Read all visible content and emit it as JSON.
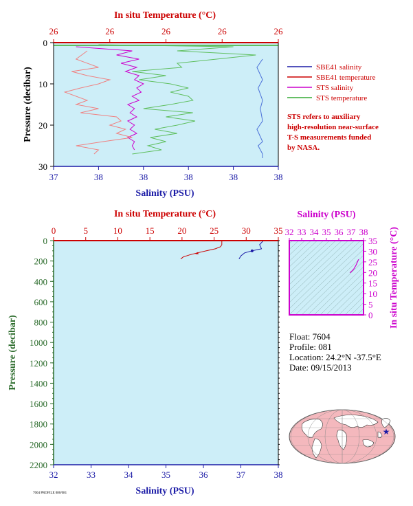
{
  "chart_data": [
    {
      "type": "line",
      "panel": "upper-profile",
      "top_axis": {
        "label": "In situ Temperature (°C)",
        "ticks": [
          "26",
          "26",
          "26",
          "26",
          "26"
        ]
      },
      "bottom_axis": {
        "label": "Salinity (PSU)",
        "ticks": [
          "37",
          "38",
          "38",
          "38",
          "38",
          "38"
        ]
      },
      "left_axis": {
        "label": "Pressure (decibar)",
        "ticks": [
          "0",
          "10",
          "20",
          "30"
        ],
        "ylim": [
          0,
          30
        ]
      },
      "legend": {
        "placement": "right",
        "items": [
          {
            "name": "SBE41 salinity",
            "color": "#1a1aa6"
          },
          {
            "name": "SBE41 temperature",
            "color": "#cc0000"
          },
          {
            "name": "STS salinity",
            "color": "#cc00cc"
          },
          {
            "name": "STS temperature",
            "color": "#33aa33"
          }
        ]
      },
      "note": [
        "STS refers to auxiliary",
        "high-resolution near-surface",
        "T-S measurements funded",
        "by NASA."
      ],
      "series": [
        {
          "name": "SBE41 salinity",
          "color": "#4a6fd8",
          "x_frac": [
            0.93,
            0.905,
            0.93,
            0.91,
            0.93,
            0.92,
            0.93,
            0.905,
            0.93,
            0.91,
            0.93,
            0.93
          ],
          "pressure": [
            4,
            6,
            9,
            11,
            14,
            16,
            19,
            21,
            24,
            25,
            27,
            28
          ]
        },
        {
          "name": "STS temperature",
          "color": "#5fbf5f",
          "x_frac": [
            0.2,
            0.8,
            0.55,
            0.9,
            0.55,
            0.57,
            0.35,
            0.5,
            0.38,
            0.52,
            0.6,
            0.52,
            0.6,
            0.62,
            0.52,
            0.4,
            0.62,
            0.5,
            0.63,
            0.55,
            0.45,
            0.55,
            0.43,
            0.5,
            0.42,
            0.48,
            0.35
          ],
          "pressure": [
            0.5,
            1,
            2,
            3,
            5,
            6,
            7,
            8,
            9,
            10,
            11,
            12,
            13,
            14,
            15,
            16,
            17,
            18,
            19,
            20,
            21,
            22,
            23,
            24,
            25,
            26,
            27
          ]
        },
        {
          "name": "STS salinity",
          "color": "#cc00cc",
          "x_frac": [
            0.1,
            0.35,
            0.28,
            0.38,
            0.3,
            0.37,
            0.32,
            0.38,
            0.36,
            0.4,
            0.37,
            0.39,
            0.35,
            0.38,
            0.33,
            0.36,
            0.34,
            0.37,
            0.33,
            0.36,
            0.34,
            0.37,
            0.33,
            0.36,
            0.35,
            0.36
          ],
          "pressure": [
            1,
            2,
            3,
            4,
            5,
            6,
            7,
            8,
            9,
            10,
            11,
            12,
            13,
            14,
            15,
            16,
            17,
            18,
            19,
            20,
            21,
            22,
            23,
            24,
            25,
            26
          ]
        },
        {
          "name": "SBE41 temperature",
          "color": "#f08080",
          "x_frac": [
            0.15,
            0.1,
            0.2,
            0.08,
            0.15,
            0.25,
            0.2,
            0.12,
            0.05,
            0.15,
            0.1,
            0.2,
            0.12,
            0.28,
            0.3,
            0.25,
            0.32,
            0.28,
            0.35,
            0.22,
            0.1,
            0.2,
            0.18
          ],
          "pressure": [
            2,
            4,
            6,
            7,
            8,
            9,
            10,
            11,
            12,
            14,
            15,
            16,
            17,
            18,
            19,
            20,
            21,
            22,
            23,
            24,
            25,
            26,
            27
          ]
        }
      ]
    },
    {
      "type": "line",
      "panel": "lower-profile",
      "top_axis": {
        "label": "In situ Temperature (°C)",
        "values": [
          0,
          5,
          10,
          15,
          20,
          25,
          30,
          35
        ],
        "xlim": [
          0,
          35
        ]
      },
      "bottom_axis": {
        "label": "Salinity (PSU)",
        "values": [
          32,
          33,
          34,
          35,
          36,
          37,
          38
        ],
        "xlim": [
          32,
          38
        ]
      },
      "left_axis": {
        "label": "Pressure (decibar)",
        "values": [
          0,
          200,
          400,
          600,
          800,
          1000,
          1200,
          1400,
          1600,
          1800,
          2000,
          2200
        ],
        "ylim": [
          0,
          2200
        ]
      },
      "series": [
        {
          "name": "Temperature",
          "color": "#cc0000",
          "temperature": [
            26.2,
            26.2,
            26.0,
            25.2,
            23.8,
            22.4,
            21.2,
            20.2,
            19.8
          ],
          "pressure": [
            0,
            40,
            60,
            80,
            100,
            120,
            140,
            160,
            180
          ]
        },
        {
          "name": "Salinity",
          "color": "#1a1aa6",
          "salinity": [
            37.6,
            37.5,
            37.55,
            37.3,
            37.1,
            37.0,
            36.95
          ],
          "pressure": [
            0,
            40,
            80,
            100,
            120,
            150,
            180
          ]
        }
      ]
    },
    {
      "type": "scatter",
      "panel": "ts-diagram",
      "top_axis": {
        "label": "Salinity (PSU)",
        "values": [
          32,
          33,
          34,
          35,
          36,
          37,
          38
        ],
        "xlim": [
          32,
          38
        ]
      },
      "right_axis": {
        "label": "In situ Temperature (°C)",
        "values": [
          0,
          5,
          10,
          15,
          20,
          25,
          30,
          35
        ],
        "ylim": [
          0,
          35
        ]
      },
      "series": [
        {
          "name": "T-S",
          "color": "#cc00cc",
          "salinity": [
            36.9,
            37.2,
            37.4,
            37.6
          ],
          "temperature": [
            19.8,
            21.5,
            23.5,
            26.2
          ]
        }
      ]
    }
  ],
  "float_info": {
    "float": "Float: 7604",
    "profile": "Profile: 081",
    "location": "Location: 24.2°N -37.5°E",
    "date": "Date: 09/15/2013"
  },
  "map": {
    "marker_lat": 24.2,
    "marker_lon": -37.5,
    "marker_color": "#1a1aa6"
  },
  "footer": "7604 PROFILE 080/081",
  "colors": {
    "plot_bg": "#cdeef8",
    "red_axis": "#cc0000",
    "blue_axis": "#1a1aa6",
    "green_axis": "#2b6b2b",
    "magenta_axis": "#cc00cc"
  }
}
